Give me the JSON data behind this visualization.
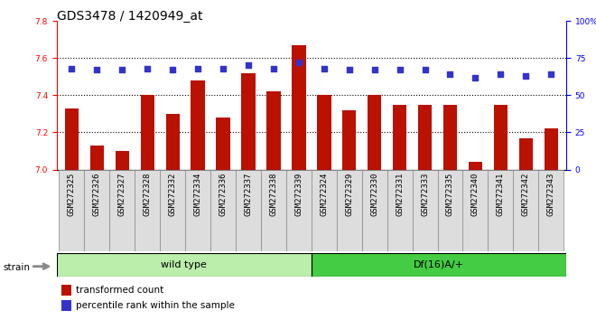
{
  "title": "GDS3478 / 1420949_at",
  "categories": [
    "GSM272325",
    "GSM272326",
    "GSM272327",
    "GSM272328",
    "GSM272332",
    "GSM272334",
    "GSM272336",
    "GSM272337",
    "GSM272338",
    "GSM272339",
    "GSM272324",
    "GSM272329",
    "GSM272330",
    "GSM272331",
    "GSM272333",
    "GSM272335",
    "GSM272340",
    "GSM272341",
    "GSM272342",
    "GSM272343"
  ],
  "bar_values": [
    7.33,
    7.13,
    7.1,
    7.4,
    7.3,
    7.48,
    7.28,
    7.52,
    7.42,
    7.67,
    7.4,
    7.32,
    7.4,
    7.35,
    7.35,
    7.35,
    7.04,
    7.35,
    7.17,
    7.22
  ],
  "percentile_values": [
    68,
    67,
    67,
    68,
    67,
    68,
    68,
    70,
    68,
    72,
    68,
    67,
    67,
    67,
    67,
    64,
    62,
    64,
    63,
    64
  ],
  "bar_color": "#bb1100",
  "dot_color": "#3333cc",
  "ylim_left": [
    7.0,
    7.8
  ],
  "ylim_right": [
    0,
    100
  ],
  "yticks_left": [
    7.0,
    7.2,
    7.4,
    7.6,
    7.8
  ],
  "yticks_right": [
    0,
    25,
    50,
    75,
    100
  ],
  "group1_label": "wild type",
  "group1_count": 10,
  "group2_label": "Df(16)A/+",
  "group2_count": 10,
  "group1_color": "#bbeeaa",
  "group2_color": "#44cc44",
  "strain_label": "strain",
  "legend_bar_label": "transformed count",
  "legend_dot_label": "percentile rank within the sample",
  "title_fontsize": 10,
  "tick_fontsize": 6.5,
  "label_fontsize": 8
}
